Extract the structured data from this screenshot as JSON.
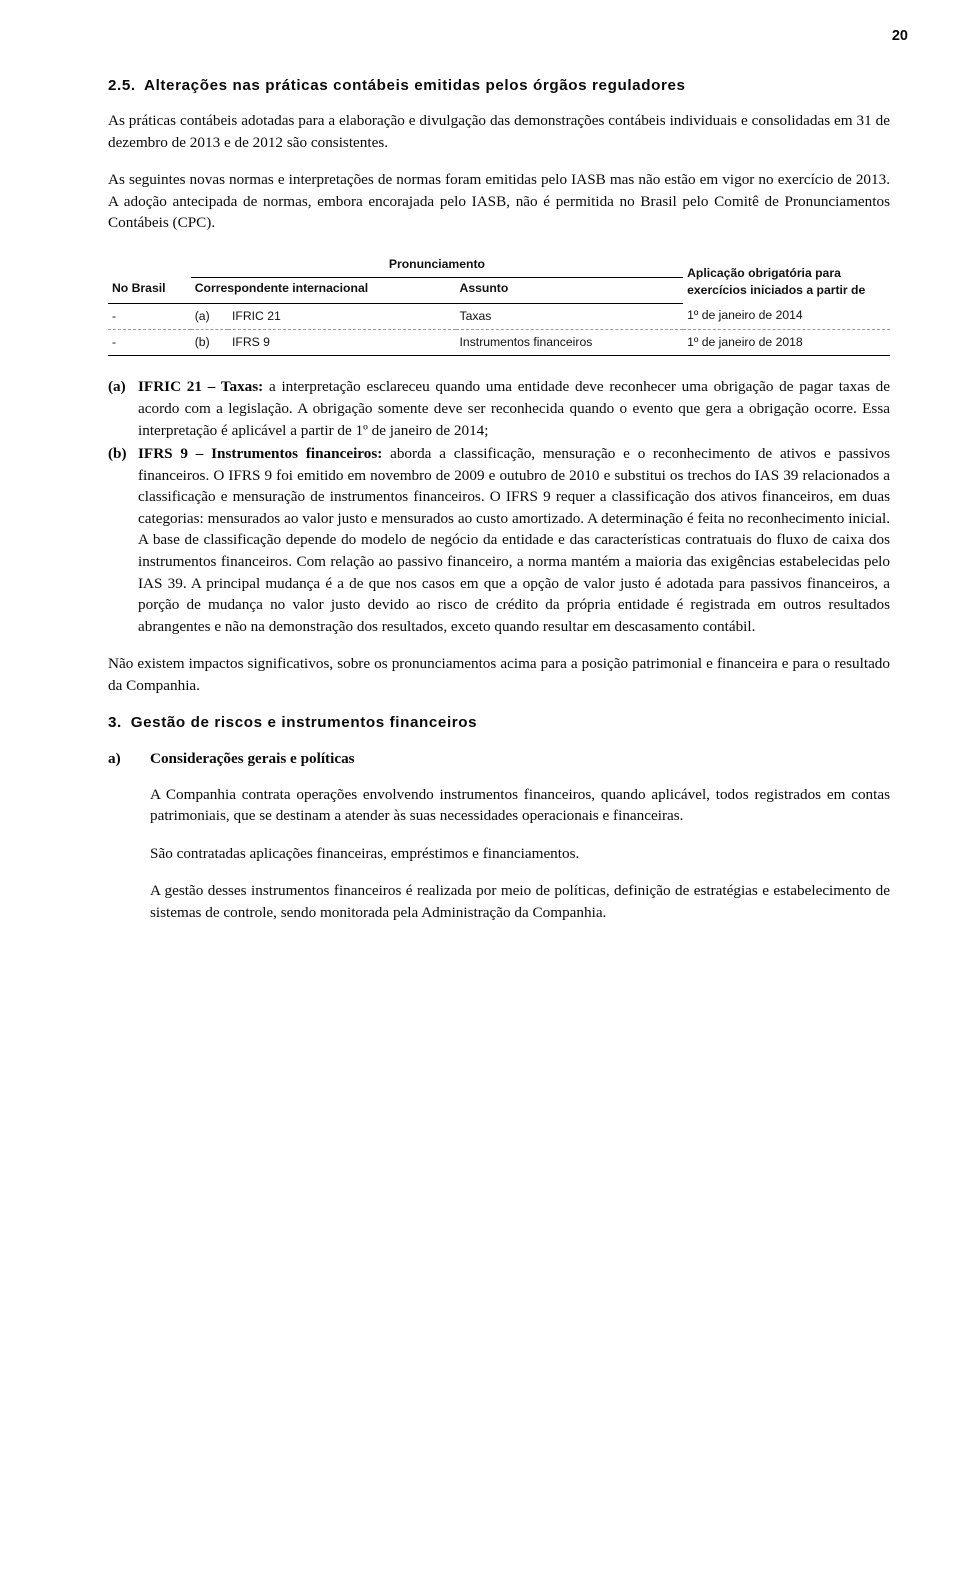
{
  "page_number": "20",
  "section_2_5": {
    "num": "2.5.",
    "title": "Alterações nas práticas contábeis emitidas pelos órgãos reguladores",
    "p1": "As práticas contábeis adotadas para a elaboração e divulgação das demonstrações contábeis individuais e consolidadas em 31 de dezembro de 2013 e de 2012 são consistentes.",
    "p2": "As seguintes novas normas e interpretações de normas foram emitidas pelo IASB mas não estão em vigor no exercício de 2013. A adoção antecipada de normas, embora encorajada pelo IASB, não é permitida no Brasil pelo Comitê de Pronunciamentos Contábeis (CPC)."
  },
  "table": {
    "head_pronunciamento": "Pronunciamento",
    "head_aplic": "Aplicação obrigatória para exercícios iniciados a partir de",
    "head_nobrasil": "No Brasil",
    "head_corresp": "Correspondente internacional",
    "head_assunto": "Assunto",
    "rows": [
      {
        "c0": "-",
        "c1": "(a)",
        "c2": "IFRIC 21",
        "c3": "Taxas",
        "c4": "1º de janeiro de 2014"
      },
      {
        "c0": "-",
        "c1": "(b)",
        "c2": "IFRS 9",
        "c3": "Instrumentos financeiros",
        "c4": "1º de janeiro de 2018"
      }
    ]
  },
  "list_items": {
    "a": {
      "tag": "(a)",
      "lead": "IFRIC 21 – Taxas:",
      "body": " a interpretação esclareceu quando uma entidade deve reconhecer uma obrigação de pagar taxas de acordo com a legislação. A obrigação somente deve ser reconhecida quando o evento que gera a obrigação ocorre. Essa interpretação é aplicável a partir de 1º de janeiro de 2014;"
    },
    "b": {
      "tag": "(b)",
      "lead": "IFRS 9 – Instrumentos financeiros:",
      "body": " aborda a classificação, mensuração e o reconhecimento de ativos e passivos financeiros. O IFRS 9 foi emitido em novembro de 2009 e outubro de 2010 e substitui os trechos do IAS 39 relacionados a classificação e mensuração de instrumentos financeiros. O IFRS 9 requer a classificação dos ativos financeiros, em duas categorias: mensurados ao valor justo e mensurados ao custo amortizado. A determinação é feita no reconhecimento inicial. A base de classificação depende do modelo de negócio da entidade e das características contratuais do fluxo de caixa dos instrumentos financeiros. Com relação ao passivo financeiro, a norma mantém a maioria das exigências estabelecidas pelo IAS 39. A principal mudança é a de que nos casos em que a opção de valor justo é adotada para passivos financeiros, a porção de mudança no valor justo devido ao risco de crédito da própria entidade é registrada em outros resultados abrangentes e não na demonstração dos resultados, exceto quando resultar em descasamento contábil."
    }
  },
  "p_after_list": "Não existem impactos significativos, sobre os pronunciamentos acima para a posição patrimonial e financeira e para o resultado da Companhia.",
  "section_3": {
    "num": "3.",
    "title": "Gestão de riscos e instrumentos financeiros",
    "sub_a": {
      "label": "a)",
      "heading": "Considerações gerais e políticas",
      "p1": "A Companhia contrata operações envolvendo instrumentos financeiros, quando aplicável, todos registrados em contas patrimoniais, que se destinam a atender às suas necessidades operacionais e financeiras.",
      "p2": "São contratadas aplicações financeiras, empréstimos e financiamentos.",
      "p3": "A gestão desses instrumentos financeiros é realizada por meio de políticas, definição de estratégias e estabelecimento de sistemas de controle, sendo monitorada pela Administração da Companhia."
    }
  }
}
